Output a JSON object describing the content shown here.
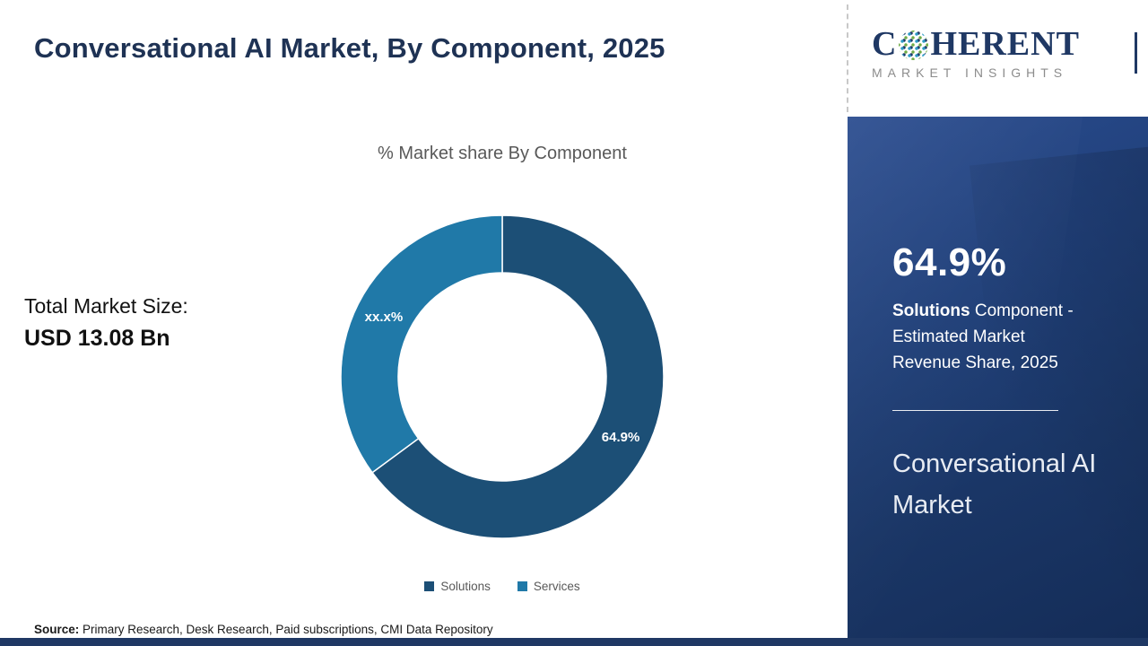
{
  "header": {
    "title": "Conversational AI Market, By Component, 2025"
  },
  "logo": {
    "name_prefix": "C",
    "name_suffix": "HERENT",
    "tagline": "MARKET INSIGHTS"
  },
  "left_panel": {
    "total_label": "Total Market Size:",
    "total_value": "USD 13.08 Bn"
  },
  "chart_data": {
    "type": "pie",
    "donut": true,
    "title": "% Market share By Component",
    "labels": [
      "Solutions",
      "Services"
    ],
    "values": [
      64.9,
      35.1
    ],
    "display_labels": [
      "64.9%",
      "xx.x%"
    ],
    "colors": [
      "#1c4f76",
      "#2079a8"
    ],
    "legend_position": "bottom",
    "start_angle_deg": 0,
    "direction": "clockwise"
  },
  "sidebar": {
    "highlight_value": "64.9%",
    "highlight_bold": "Solutions",
    "highlight_text": " Component - Estimated Market Revenue Share, 2025",
    "market_name": "Conversational AI Market"
  },
  "footer": {
    "source_label": "Source:",
    "source_text": " Primary Research, Desk Research, Paid subscriptions, CMI Data Repository"
  },
  "colors": {
    "navy_panel": "#203a6d",
    "navy_strip": "#1f3864",
    "title_text": "#1e3254",
    "subtitle_text": "#595959"
  }
}
